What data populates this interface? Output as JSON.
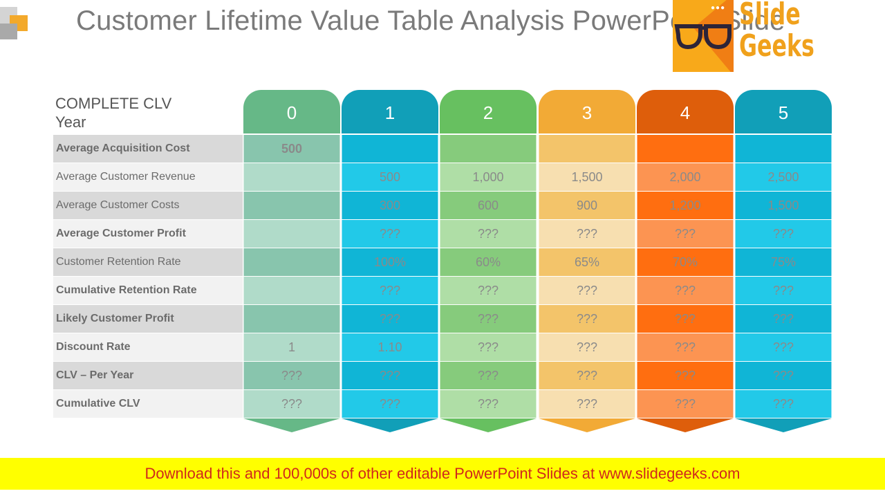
{
  "title": "Customer Lifetime Value Table Analysis PowerPoint Slide",
  "logo": {
    "dots": "●●●",
    "line1": "Slide",
    "line2": "Geeks"
  },
  "table": {
    "header_label_line1": "COMPLETE CLV",
    "header_label_line2": "Year",
    "row_labels": [
      {
        "label": "Average Acquisition Cost",
        "bold": true
      },
      {
        "label": "Average Customer Revenue",
        "bold": false
      },
      {
        "label": "Average Customer Costs",
        "bold": false
      },
      {
        "label": "Average Customer Profit",
        "bold": true
      },
      {
        "label": "Customer Retention Rate",
        "bold": false
      },
      {
        "label": "Cumulative Retention Rate",
        "bold": true
      },
      {
        "label": "Likely Customer Profit",
        "bold": true
      },
      {
        "label": "Discount Rate",
        "bold": true
      },
      {
        "label": "CLV – Per Year",
        "bold": true
      },
      {
        "label": "Cumulative CLV",
        "bold": true
      }
    ],
    "columns": [
      {
        "year": "0",
        "head_color": "#66b887",
        "dark": "#88c5ad",
        "light": "#b0dbc9",
        "arrow": "#66b887",
        "cells": [
          "500",
          "",
          "",
          "",
          "",
          "",
          "",
          "1",
          "???",
          "???"
        ]
      },
      {
        "year": "1",
        "head_color": "#119fb8",
        "dark": "#10b5d6",
        "light": "#22c9e8",
        "arrow": "#119fb8",
        "cells": [
          "",
          "500",
          "300",
          "???",
          "100%",
          "???",
          "???",
          "1.10",
          "???",
          "???"
        ]
      },
      {
        "year": "2",
        "head_color": "#67c060",
        "dark": "#86cb7c",
        "light": "#afdea6",
        "arrow": "#67c060",
        "cells": [
          "",
          "1,000",
          "600",
          "???",
          "60%",
          "???",
          "???",
          "???",
          "???",
          "???"
        ]
      },
      {
        "year": "3",
        "head_color": "#f2aa36",
        "dark": "#f3c46a",
        "light": "#f7dfb0",
        "arrow": "#f2aa36",
        "cells": [
          "",
          "1,500",
          "900",
          "???",
          "65%",
          "???",
          "???",
          "???",
          "???",
          "???"
        ]
      },
      {
        "year": "4",
        "head_color": "#de5e0b",
        "dark": "#ff6e10",
        "light": "#fc9452",
        "arrow": "#de5e0b",
        "cells": [
          "",
          "2,000",
          "1,200",
          "???",
          "70%",
          "???",
          "???",
          "???",
          "???",
          "???"
        ]
      },
      {
        "year": "5",
        "head_color": "#119fb8",
        "dark": "#10b5d6",
        "light": "#22c9e8",
        "arrow": "#119fb8",
        "cells": [
          "",
          "2,500",
          "1,500",
          "???",
          "75%",
          "???",
          "???",
          "???",
          "???",
          "???"
        ]
      }
    ]
  },
  "footer": {
    "text": "Download this and 100,000s of other editable PowerPoint Slides at www.slidegeeks.com"
  }
}
